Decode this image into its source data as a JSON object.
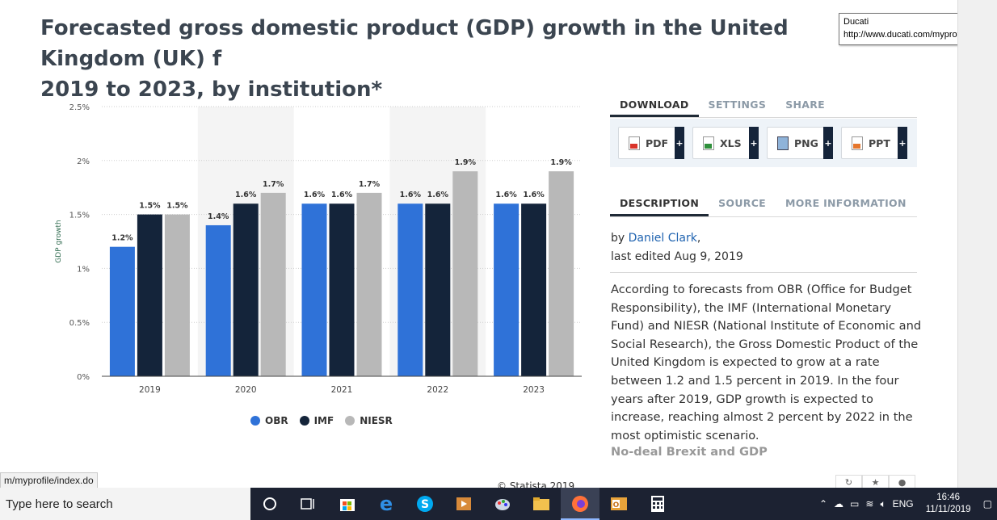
{
  "title": "Forecasted gross domestic product (GDP) growth in the United Kingdom (UK) f\n2019 to 2023, by institution*",
  "tooltip": {
    "line1": "Ducati",
    "line2": "http://www.ducati.com/myprofile/i"
  },
  "chart_data": {
    "type": "bar",
    "categories": [
      "2019",
      "2020",
      "2021",
      "2022",
      "2023"
    ],
    "series": [
      {
        "name": "OBR",
        "color": "#2f72d8",
        "values": [
          1.2,
          1.4,
          1.6,
          1.6,
          1.6
        ]
      },
      {
        "name": "IMF",
        "color": "#14243a",
        "values": [
          1.5,
          1.6,
          1.6,
          1.6,
          1.6
        ]
      },
      {
        "name": "NIESR",
        "color": "#b8b8b8",
        "values": [
          1.5,
          1.7,
          1.7,
          1.9,
          1.9
        ]
      }
    ],
    "value_labels": [
      [
        "1.2%",
        "1.5%",
        "1.5%"
      ],
      [
        "1.4%",
        "1.6%",
        "1.7%"
      ],
      [
        "1.6%",
        "1.6%",
        "1.7%"
      ],
      [
        "1.6%",
        "1.6%",
        "1.9%"
      ],
      [
        "1.6%",
        "1.6%",
        "1.9%"
      ]
    ],
    "ylabel": "GDP growth",
    "yticks": [
      "0%",
      "0.5%",
      "1%",
      "1.5%",
      "2%",
      "2.5%"
    ],
    "ylim": [
      0,
      2.5
    ],
    "grid": true,
    "shaded_categories": [
      "2020",
      "2022"
    ],
    "legend_position": "bottom",
    "footer": "© Statista 2019"
  },
  "download_tabs": [
    "DOWNLOAD",
    "SETTINGS",
    "SHARE"
  ],
  "download_buttons": [
    "PDF",
    "XLS",
    "PNG",
    "PPT"
  ],
  "info_tabs": [
    "DESCRIPTION",
    "SOURCE",
    "MORE INFORMATION"
  ],
  "byline": {
    "prefix": "by ",
    "author": "Daniel Clark",
    "suffix": ",",
    "edited": "last edited Aug 9, 2019"
  },
  "description": "According to forecasts from OBR (Office for Budget Responsibility), the IMF (International Monetary Fund) and NIESR (National Institute of Economic and Social Research), the Gross Domestic Product of the United Kingdom is expected to grow at a rate between 1.2 and 1.5 percent in 2019. In the four years after 2019, GDP growth is expected to increase, reaching almost 2 percent by 2022 in the most optimistic scenario.",
  "subheading": "No-deal Brexit and GDP",
  "status_url": "m/myprofile/index.do",
  "taskbar": {
    "search_placeholder": "Type here to search",
    "language": "ENG",
    "time": "16:46",
    "date": "11/11/2019"
  }
}
